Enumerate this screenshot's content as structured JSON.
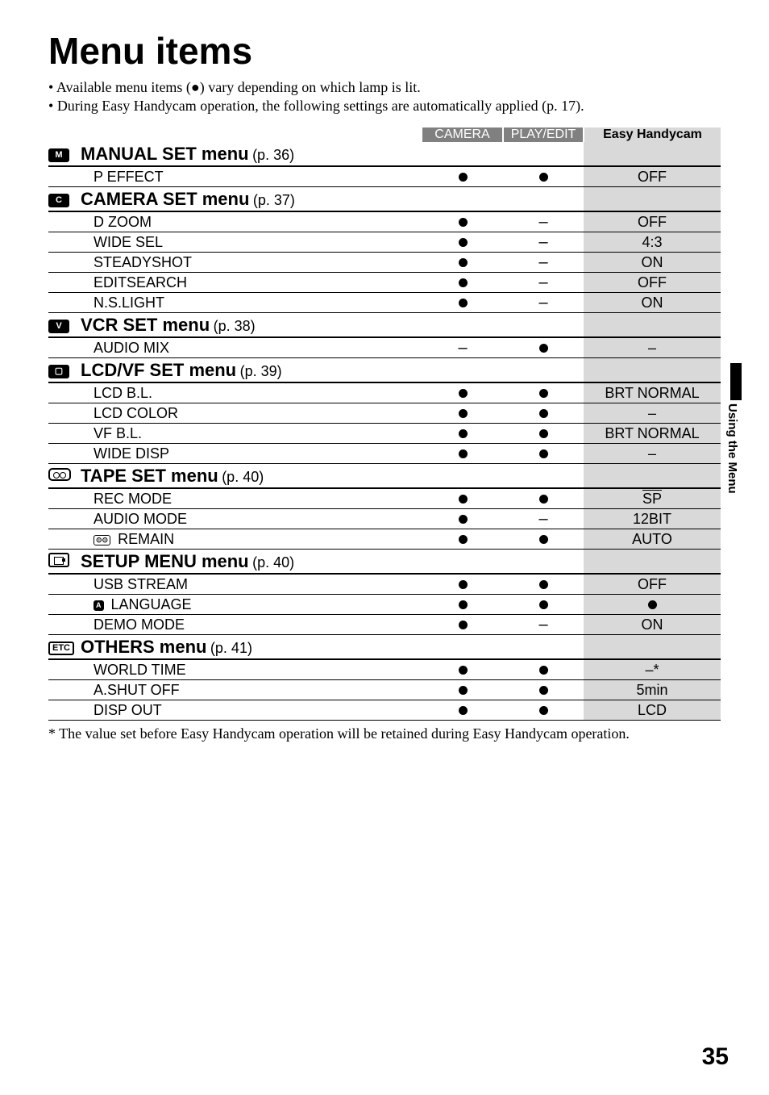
{
  "page": {
    "title": "Menu items",
    "bullets": [
      "Available menu items (●) vary depending on which lamp is lit.",
      "During Easy Handycam operation, the following settings are automatically applied (p. 17)."
    ],
    "footnote": "* The value set before Easy Handycam operation will be retained during Easy Handycam operation.",
    "sideText": "Using the Menu",
    "pageNumber": "35"
  },
  "headers": {
    "camera": "CAMERA",
    "playedit": "PLAY/EDIT",
    "easy": "Easy Handycam"
  },
  "sections": [
    {
      "iconType": "filled",
      "iconText": "M",
      "name": "MANUAL SET menu",
      "page": "(p. 36)",
      "rows": [
        {
          "label": "P EFFECT",
          "camera": "dot",
          "playedit": "dot",
          "easy": "OFF"
        }
      ]
    },
    {
      "iconType": "filled",
      "iconText": "C",
      "name": "CAMERA SET menu",
      "page": "(p. 37)",
      "rows": [
        {
          "label": "D ZOOM",
          "camera": "dot",
          "playedit": "dash",
          "easy": "OFF"
        },
        {
          "label": "WIDE SEL",
          "camera": "dot",
          "playedit": "dash",
          "easy": "4:3"
        },
        {
          "label": "STEADYSHOT",
          "camera": "dot",
          "playedit": "dash",
          "easy": "ON"
        },
        {
          "label": "EDITSEARCH",
          "camera": "dot",
          "playedit": "dash",
          "easy": "OFF"
        },
        {
          "label": "N.S.LIGHT",
          "camera": "dot",
          "playedit": "dash",
          "easy": "ON"
        }
      ]
    },
    {
      "iconType": "filled",
      "iconText": "V",
      "name": "VCR SET menu",
      "page": "(p. 38)",
      "rows": [
        {
          "label": "AUDIO MIX",
          "camera": "dash",
          "playedit": "dot",
          "easy": "–"
        }
      ]
    },
    {
      "iconType": "filled",
      "iconText": "▢",
      "name": "LCD/VF SET menu",
      "page": "(p. 39)",
      "rows": [
        {
          "label": "LCD B.L.",
          "camera": "dot",
          "playedit": "dot",
          "easy": "BRT NORMAL"
        },
        {
          "label": "LCD COLOR",
          "camera": "dot",
          "playedit": "dot",
          "easy": "–"
        },
        {
          "label": "VF B.L.",
          "camera": "dot",
          "playedit": "dot",
          "easy": "BRT NORMAL"
        },
        {
          "label": "WIDE DISP",
          "camera": "dot",
          "playedit": "dot",
          "easy": "–"
        }
      ]
    },
    {
      "iconType": "tape",
      "iconText": "",
      "name": "TAPE SET menu",
      "page": "(p. 40)",
      "rows": [
        {
          "label": "REC MODE",
          "camera": "dot",
          "playedit": "dot",
          "easySpecial": "sp",
          "easy": "SP"
        },
        {
          "label": "AUDIO MODE",
          "camera": "dot",
          "playedit": "dash",
          "easy": "12BIT"
        },
        {
          "label": "REMAIN",
          "inlineIcon": "tape",
          "camera": "dot",
          "playedit": "dot",
          "easy": "AUTO"
        }
      ]
    },
    {
      "iconType": "setup",
      "iconText": "",
      "name": "SETUP MENU menu",
      "page": "(p. 40)",
      "rows": [
        {
          "label": "USB STREAM",
          "camera": "dot",
          "playedit": "dot",
          "easy": "OFF"
        },
        {
          "label": "LANGUAGE",
          "inlineIcon": "A",
          "camera": "dot",
          "playedit": "dot",
          "easySpecial": "dot",
          "easy": ""
        },
        {
          "label": "DEMO MODE",
          "camera": "dot",
          "playedit": "dash",
          "easy": "ON"
        }
      ]
    },
    {
      "iconType": "plain",
      "iconText": "ETC",
      "name": "OTHERS menu",
      "page": "(p. 41)",
      "rows": [
        {
          "label": "WORLD TIME",
          "camera": "dot",
          "playedit": "dot",
          "easy": "–*"
        },
        {
          "label": "A.SHUT OFF",
          "camera": "dot",
          "playedit": "dot",
          "easy": "5min"
        },
        {
          "label": "DISP OUT",
          "camera": "dot",
          "playedit": "dot",
          "easy": "LCD"
        }
      ]
    }
  ],
  "colors": {
    "headerGreyBg": "#808080",
    "headerLightGreyBg": "#d9d9d9",
    "text": "#000000",
    "background": "#ffffff"
  }
}
